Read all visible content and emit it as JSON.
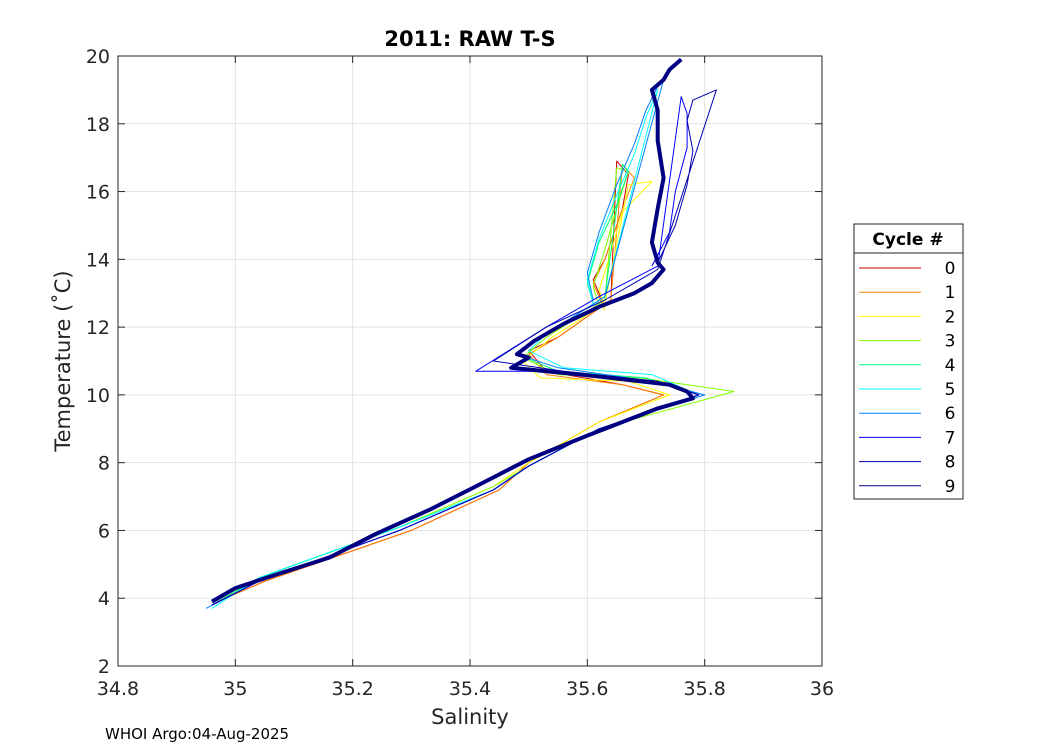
{
  "footer_text": "WHOI Argo:04-Aug-2025",
  "chart_data": {
    "type": "line",
    "title": "2011: RAW T-S",
    "xlabel": "Salinity",
    "ylabel": "Temperature (˚C)",
    "xlim": [
      34.8,
      36
    ],
    "ylim": [
      2,
      20
    ],
    "xticks": [
      "34.8",
      "35",
      "35.2",
      "35.4",
      "35.6",
      "35.8",
      "36"
    ],
    "yticks": [
      "2",
      "4",
      "6",
      "8",
      "10",
      "12",
      "14",
      "16",
      "18",
      "20"
    ],
    "grid": true,
    "legend": {
      "title": "Cycle #",
      "position": "right"
    },
    "series": [
      {
        "name": "0",
        "color": "#cc0000",
        "x": [
          35.63,
          35.61,
          35.63,
          35.66,
          35.67,
          35.65,
          35.64,
          35.55,
          35.5,
          35.53,
          35.66,
          35.73,
          35.62,
          35.5,
          35.45,
          35.3,
          35.05,
          34.97
        ],
        "y": [
          12.6,
          13.4,
          14.0,
          15.5,
          16.5,
          16.9,
          12.8,
          11.7,
          11.3,
          10.7,
          10.3,
          10.0,
          9.2,
          8.0,
          7.2,
          6.0,
          4.5,
          3.9
        ]
      },
      {
        "name": "1",
        "color": "#ff8000",
        "x": [
          35.63,
          35.61,
          35.63,
          35.66,
          35.68,
          35.66,
          35.64,
          35.55,
          35.5,
          35.53,
          35.66,
          35.73,
          35.62,
          35.5,
          35.45,
          35.3,
          35.05,
          34.97
        ],
        "y": [
          12.5,
          13.3,
          14.0,
          15.5,
          16.4,
          16.8,
          12.8,
          11.7,
          11.2,
          10.6,
          10.3,
          10.0,
          9.2,
          8.0,
          7.2,
          6.0,
          4.5,
          3.9
        ]
      },
      {
        "name": "2",
        "color": "#ffff00",
        "x": [
          35.63,
          35.62,
          35.64,
          35.66,
          35.71,
          35.67,
          35.63,
          35.54,
          35.49,
          35.52,
          35.67,
          35.74,
          35.62,
          35.5,
          35.44,
          35.28,
          35.04,
          34.97
        ],
        "y": [
          12.5,
          13.1,
          14.2,
          15.4,
          16.3,
          16.2,
          12.7,
          11.7,
          11.0,
          10.5,
          10.4,
          10.0,
          9.2,
          8.0,
          7.3,
          6.1,
          4.6,
          3.9
        ]
      },
      {
        "name": "3",
        "color": "#80ff00",
        "x": [
          35.62,
          35.61,
          35.63,
          35.65,
          35.67,
          35.65,
          35.63,
          35.53,
          35.49,
          35.55,
          35.69,
          35.85,
          35.62,
          35.5,
          35.44,
          35.28,
          35.04,
          34.97
        ],
        "y": [
          12.6,
          13.2,
          14.3,
          15.5,
          16.6,
          16.7,
          12.8,
          11.7,
          11.1,
          10.6,
          10.5,
          10.1,
          9.0,
          7.9,
          7.3,
          6.1,
          4.6,
          3.9
        ]
      },
      {
        "name": "4",
        "color": "#00ff80",
        "x": [
          35.61,
          35.6,
          35.62,
          35.65,
          35.67,
          35.66,
          35.63,
          35.53,
          35.48,
          35.55,
          35.7,
          35.79,
          35.62,
          35.5,
          35.44,
          35.28,
          35.04,
          34.96
        ],
        "y": [
          12.7,
          13.3,
          14.5,
          15.6,
          16.6,
          16.8,
          12.9,
          11.8,
          11.2,
          10.7,
          10.5,
          10.0,
          9.0,
          7.9,
          7.2,
          6.1,
          4.6,
          3.8
        ]
      },
      {
        "name": "5",
        "color": "#00ffff",
        "x": [
          35.61,
          35.6,
          35.62,
          35.65,
          35.68,
          35.7,
          35.72,
          35.63,
          35.53,
          35.5,
          35.56,
          35.71,
          35.79,
          35.62,
          35.5,
          35.44,
          35.28,
          35.04,
          34.96
        ],
        "y": [
          12.7,
          13.4,
          14.6,
          15.9,
          17.1,
          18.2,
          19.0,
          12.9,
          11.8,
          11.3,
          10.8,
          10.6,
          10.0,
          9.0,
          7.9,
          7.2,
          6.1,
          4.6,
          3.7
        ]
      },
      {
        "name": "6",
        "color": "#0080ff",
        "x": [
          35.61,
          35.6,
          35.62,
          35.65,
          35.68,
          35.7,
          35.72,
          35.73,
          35.63,
          35.53,
          35.48,
          35.55,
          35.71,
          35.8,
          35.62,
          35.5,
          35.44,
          35.28,
          35.04,
          34.95
        ],
        "y": [
          12.8,
          13.6,
          14.8,
          16.2,
          17.4,
          18.4,
          19.1,
          19.3,
          12.9,
          11.8,
          11.2,
          10.8,
          10.4,
          10.0,
          9.0,
          7.9,
          7.2,
          6.0,
          4.5,
          3.7
        ]
      },
      {
        "name": "7",
        "color": "#0000ff",
        "x": [
          35.71,
          35.74,
          35.75,
          35.77,
          35.77,
          35.76,
          35.72,
          35.62,
          35.53,
          35.41,
          35.55,
          35.72,
          35.79,
          35.62,
          35.5,
          35.44,
          35.28,
          35.04,
          34.96
        ],
        "y": [
          13.8,
          14.8,
          16.0,
          17.3,
          18.3,
          18.8,
          13.8,
          12.9,
          12.0,
          10.7,
          10.7,
          10.4,
          10.0,
          9.0,
          7.9,
          7.2,
          6.0,
          4.5,
          3.8
        ]
      },
      {
        "name": "8",
        "color": "#0000b0",
        "x": [
          35.72,
          35.75,
          35.77,
          35.78,
          35.77,
          35.78,
          35.82,
          35.72,
          35.63,
          35.53,
          35.44,
          35.56,
          35.72,
          35.79,
          35.62,
          35.5,
          35.44,
          35.28,
          35.04,
          34.96
        ],
        "y": [
          13.9,
          15.0,
          16.2,
          17.2,
          18.1,
          18.7,
          19.0,
          13.7,
          12.8,
          12.0,
          11.0,
          10.7,
          10.4,
          10.0,
          9.0,
          7.9,
          7.2,
          6.0,
          4.5,
          3.8
        ]
      },
      {
        "name": "9",
        "color": "#000080",
        "x": [
          35.76,
          35.74,
          35.73,
          35.71,
          35.72,
          35.72,
          35.73,
          35.72,
          35.71,
          35.72,
          35.73,
          35.72,
          35.71,
          35.68,
          35.62,
          35.56,
          35.51,
          35.48,
          35.5,
          35.47,
          35.53,
          35.59,
          35.64,
          35.69,
          35.74,
          35.77,
          35.78,
          35.72,
          35.66,
          35.6,
          35.5,
          35.41,
          35.33,
          35.24,
          35.16,
          35.07,
          35.0,
          34.96
        ],
        "y": [
          19.9,
          19.6,
          19.3,
          19.0,
          18.4,
          17.5,
          16.4,
          15.5,
          14.5,
          13.9,
          13.7,
          13.5,
          13.3,
          13.0,
          12.6,
          12.1,
          11.6,
          11.2,
          11.1,
          10.8,
          10.7,
          10.6,
          10.5,
          10.4,
          10.3,
          10.1,
          9.9,
          9.6,
          9.2,
          8.8,
          8.1,
          7.3,
          6.6,
          5.9,
          5.2,
          4.7,
          4.3,
          3.9
        ]
      }
    ]
  }
}
